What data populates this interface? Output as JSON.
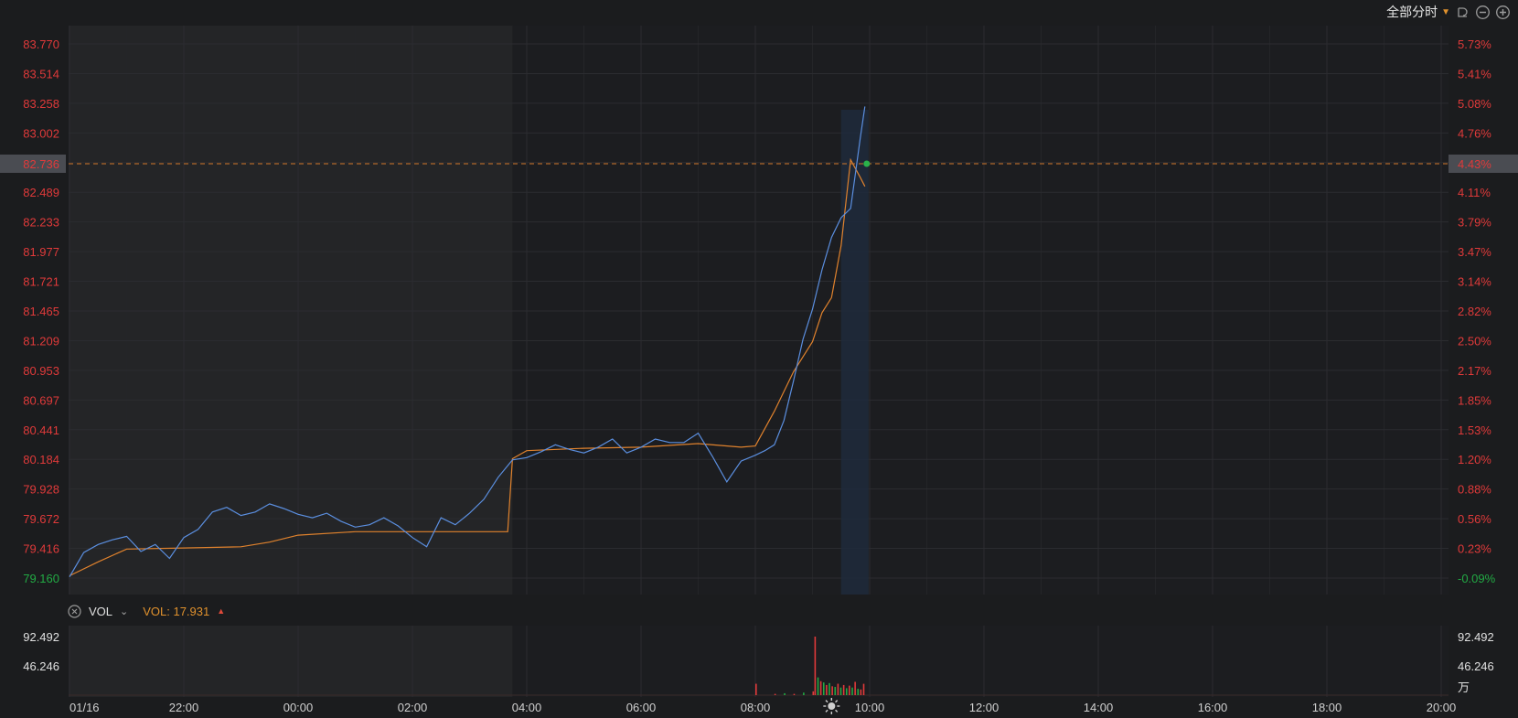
{
  "toolbar": {
    "mode_label": "全部分时",
    "icons": [
      "chevron-down-icon",
      "undo-icon",
      "zoom-out-icon",
      "zoom-in-icon"
    ]
  },
  "colors": {
    "background": "#1b1c1e",
    "price_line": "#5b8fe0",
    "avg_line": "#e0822d",
    "axis_red": "#e03a3a",
    "axis_green": "#22aa44",
    "crosshair": "#d2772a",
    "highlight_band": "#1f2a3c"
  },
  "chart_data": [
    {
      "type": "line",
      "name": "price",
      "x_ticks": [
        "01/16",
        "22:00",
        "00:00",
        "02:00",
        "04:00",
        "06:00",
        "08:00",
        "10:00",
        "12:00",
        "14:00",
        "16:00",
        "18:00",
        "20:00"
      ],
      "ylim": [
        79.16,
        83.77
      ],
      "y_ticks_left": [
        "83.770",
        "83.514",
        "83.258",
        "83.002",
        "82.736",
        "82.489",
        "82.233",
        "81.977",
        "81.721",
        "81.465",
        "81.209",
        "80.953",
        "80.697",
        "80.441",
        "80.184",
        "79.928",
        "79.672",
        "79.416",
        "79.160"
      ],
      "y_ticks_right": [
        "5.73%",
        "5.41%",
        "5.08%",
        "4.76%",
        "4.43%",
        "4.11%",
        "3.79%",
        "3.47%",
        "3.14%",
        "2.82%",
        "2.50%",
        "2.17%",
        "1.85%",
        "1.53%",
        "1.20%",
        "0.88%",
        "0.56%",
        "0.23%",
        "-0.09%"
      ],
      "crosshair": {
        "price": "82.736",
        "percent": "4.43%"
      },
      "series": [
        {
          "role": "price",
          "x": [
            "20:00",
            "20:15",
            "20:30",
            "20:45",
            "21:00",
            "21:15",
            "21:30",
            "21:45",
            "22:00",
            "22:15",
            "22:30",
            "22:45",
            "23:00",
            "23:15",
            "23:30",
            "23:45",
            "00:00",
            "00:15",
            "00:30",
            "00:45",
            "01:00",
            "01:15",
            "01:30",
            "01:45",
            "02:00",
            "02:15",
            "02:30",
            "02:45",
            "03:00",
            "03:15",
            "03:30",
            "03:45",
            "04:00",
            "04:15",
            "04:30",
            "04:45",
            "05:00",
            "05:15",
            "05:30",
            "05:45",
            "06:00",
            "06:15",
            "06:30",
            "06:45",
            "07:00",
            "07:15",
            "07:30",
            "07:45",
            "08:00",
            "08:10",
            "08:20",
            "08:30",
            "08:40",
            "08:50",
            "09:00",
            "09:10",
            "09:20",
            "09:30",
            "09:40",
            "09:50",
            "09:55"
          ],
          "values": [
            79.17,
            79.38,
            79.45,
            79.49,
            79.52,
            79.39,
            79.45,
            79.33,
            79.51,
            79.58,
            79.73,
            79.77,
            79.7,
            79.73,
            79.8,
            79.76,
            79.71,
            79.68,
            79.72,
            79.65,
            79.6,
            79.62,
            79.68,
            79.61,
            79.51,
            79.43,
            79.68,
            79.62,
            79.72,
            79.84,
            80.03,
            80.18,
            80.2,
            80.25,
            80.31,
            80.27,
            80.24,
            80.29,
            80.36,
            80.24,
            80.29,
            80.36,
            80.33,
            80.33,
            80.41,
            80.21,
            79.99,
            80.17,
            80.22,
            80.26,
            80.31,
            80.52,
            80.86,
            81.22,
            81.48,
            81.82,
            82.1,
            82.27,
            82.35,
            82.95,
            83.23
          ]
        },
        {
          "role": "average",
          "x": [
            "20:00",
            "20:30",
            "21:00",
            "22:00",
            "23:00",
            "23:30",
            "00:00",
            "01:00",
            "02:00",
            "03:00",
            "03:40",
            "03:45",
            "04:00",
            "05:00",
            "06:00",
            "07:00",
            "07:45",
            "08:00",
            "08:20",
            "08:40",
            "09:00",
            "09:10",
            "09:20",
            "09:30",
            "09:40",
            "09:50",
            "09:55"
          ],
          "values": [
            79.18,
            79.3,
            79.41,
            79.42,
            79.43,
            79.47,
            79.53,
            79.56,
            79.56,
            79.56,
            79.56,
            80.19,
            80.26,
            80.28,
            80.29,
            80.32,
            80.29,
            80.3,
            80.6,
            80.94,
            81.2,
            81.45,
            81.58,
            82.03,
            82.77,
            82.62,
            82.54
          ]
        }
      ]
    },
    {
      "type": "bar",
      "name": "volume",
      "label": "VOL",
      "current": "VOL: 17.931",
      "y_ticks": [
        "92.492",
        "46.246"
      ],
      "unit": "万",
      "ylim": [
        0,
        92.492
      ],
      "series": [
        {
          "x": [
            "08:00",
            "08:20",
            "08:30",
            "08:40",
            "08:50",
            "09:00",
            "09:02",
            "09:05",
            "09:08",
            "09:11",
            "09:14",
            "09:17",
            "09:20",
            "09:23",
            "09:26",
            "09:29",
            "09:32",
            "09:35",
            "09:38",
            "09:41",
            "09:44",
            "09:47",
            "09:50",
            "09:53"
          ],
          "values": [
            18,
            2,
            3,
            2,
            4,
            6,
            92.492,
            28,
            22,
            20,
            16,
            19,
            14,
            13,
            18,
            12,
            16,
            11,
            15,
            12,
            21,
            10,
            9,
            17.931
          ],
          "up": [
            true,
            true,
            false,
            true,
            false,
            true,
            true,
            false,
            true,
            false,
            true,
            false,
            true,
            false,
            true,
            false,
            true,
            false,
            true,
            false,
            true,
            false,
            true,
            true
          ]
        }
      ]
    }
  ]
}
